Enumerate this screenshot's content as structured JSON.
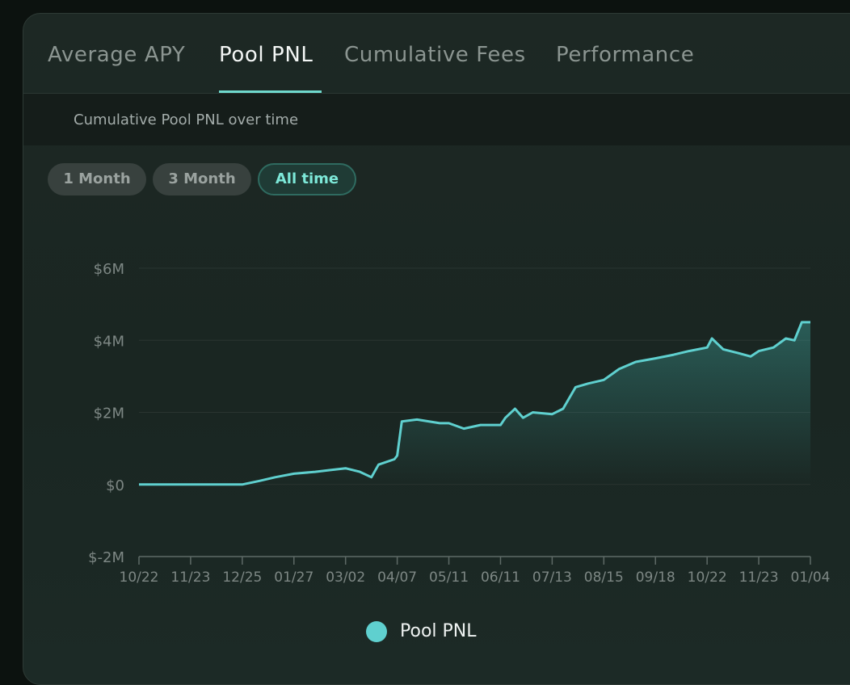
{
  "tabs": [
    {
      "label": "Average APY",
      "active": false
    },
    {
      "label": "Pool PNL",
      "active": true
    },
    {
      "label": "Cumulative Fees",
      "active": false
    },
    {
      "label": "Performance",
      "active": false
    }
  ],
  "subtitle": "Cumulative Pool PNL over time",
  "ranges": [
    {
      "label": "1 Month",
      "active": false
    },
    {
      "label": "3 Month",
      "active": false
    },
    {
      "label": "All time",
      "active": true
    }
  ],
  "colors": {
    "line": "#5fd0cf",
    "accent": "#6fd8cc",
    "axis": "#5e6a66",
    "grid": "#2a3531",
    "tick_label": "#7d8784"
  },
  "chart_data": {
    "type": "area",
    "title": "",
    "xlabel": "",
    "ylabel": "",
    "ylim": [
      -2000000,
      6000000
    ],
    "y_ticks": [
      {
        "value": 6000000,
        "label": "$6M"
      },
      {
        "value": 4000000,
        "label": "$4M"
      },
      {
        "value": 2000000,
        "label": "$2M"
      },
      {
        "value": 0,
        "label": "$0"
      },
      {
        "value": -2000000,
        "label": "$-2M"
      }
    ],
    "x_ticks": [
      "10/22",
      "11/23",
      "12/25",
      "01/27",
      "03/02",
      "04/07",
      "05/11",
      "06/11",
      "07/13",
      "08/15",
      "09/18",
      "10/22",
      "11/23",
      "01/04"
    ],
    "legend": {
      "position": "bottom-center"
    },
    "grid": true,
    "series": [
      {
        "name": "Pool PNL",
        "x": [
          "10/22",
          "11/23",
          "12/25",
          "01/05",
          "01/15",
          "01/27",
          "02/10",
          "02/20",
          "03/02",
          "03/12",
          "03/20",
          "03/25",
          "04/05",
          "04/07",
          "04/10",
          "04/20",
          "05/05",
          "05/11",
          "05/20",
          "05/30",
          "06/05",
          "06/11",
          "06/14",
          "06/20",
          "06/25",
          "07/01",
          "07/13",
          "07/20",
          "07/28",
          "08/05",
          "08/15",
          "08/25",
          "09/05",
          "09/18",
          "09/30",
          "10/10",
          "10/22",
          "10/25",
          "11/01",
          "11/10",
          "11/18",
          "11/23",
          "12/05",
          "12/15",
          "12/22",
          "12/28",
          "01/04"
        ],
        "values": [
          0,
          0,
          0,
          100000,
          200000,
          300000,
          350000,
          400000,
          450000,
          350000,
          200000,
          550000,
          700000,
          800000,
          1750000,
          1800000,
          1700000,
          1700000,
          1550000,
          1650000,
          1650000,
          1650000,
          1850000,
          2100000,
          1850000,
          2000000,
          1950000,
          2100000,
          2700000,
          2800000,
          2900000,
          3200000,
          3400000,
          3500000,
          3600000,
          3700000,
          3800000,
          4050000,
          3750000,
          3650000,
          3550000,
          3700000,
          3800000,
          4050000,
          4000000,
          4500000,
          4500000
        ]
      }
    ]
  },
  "legend_label": "Pool PNL"
}
